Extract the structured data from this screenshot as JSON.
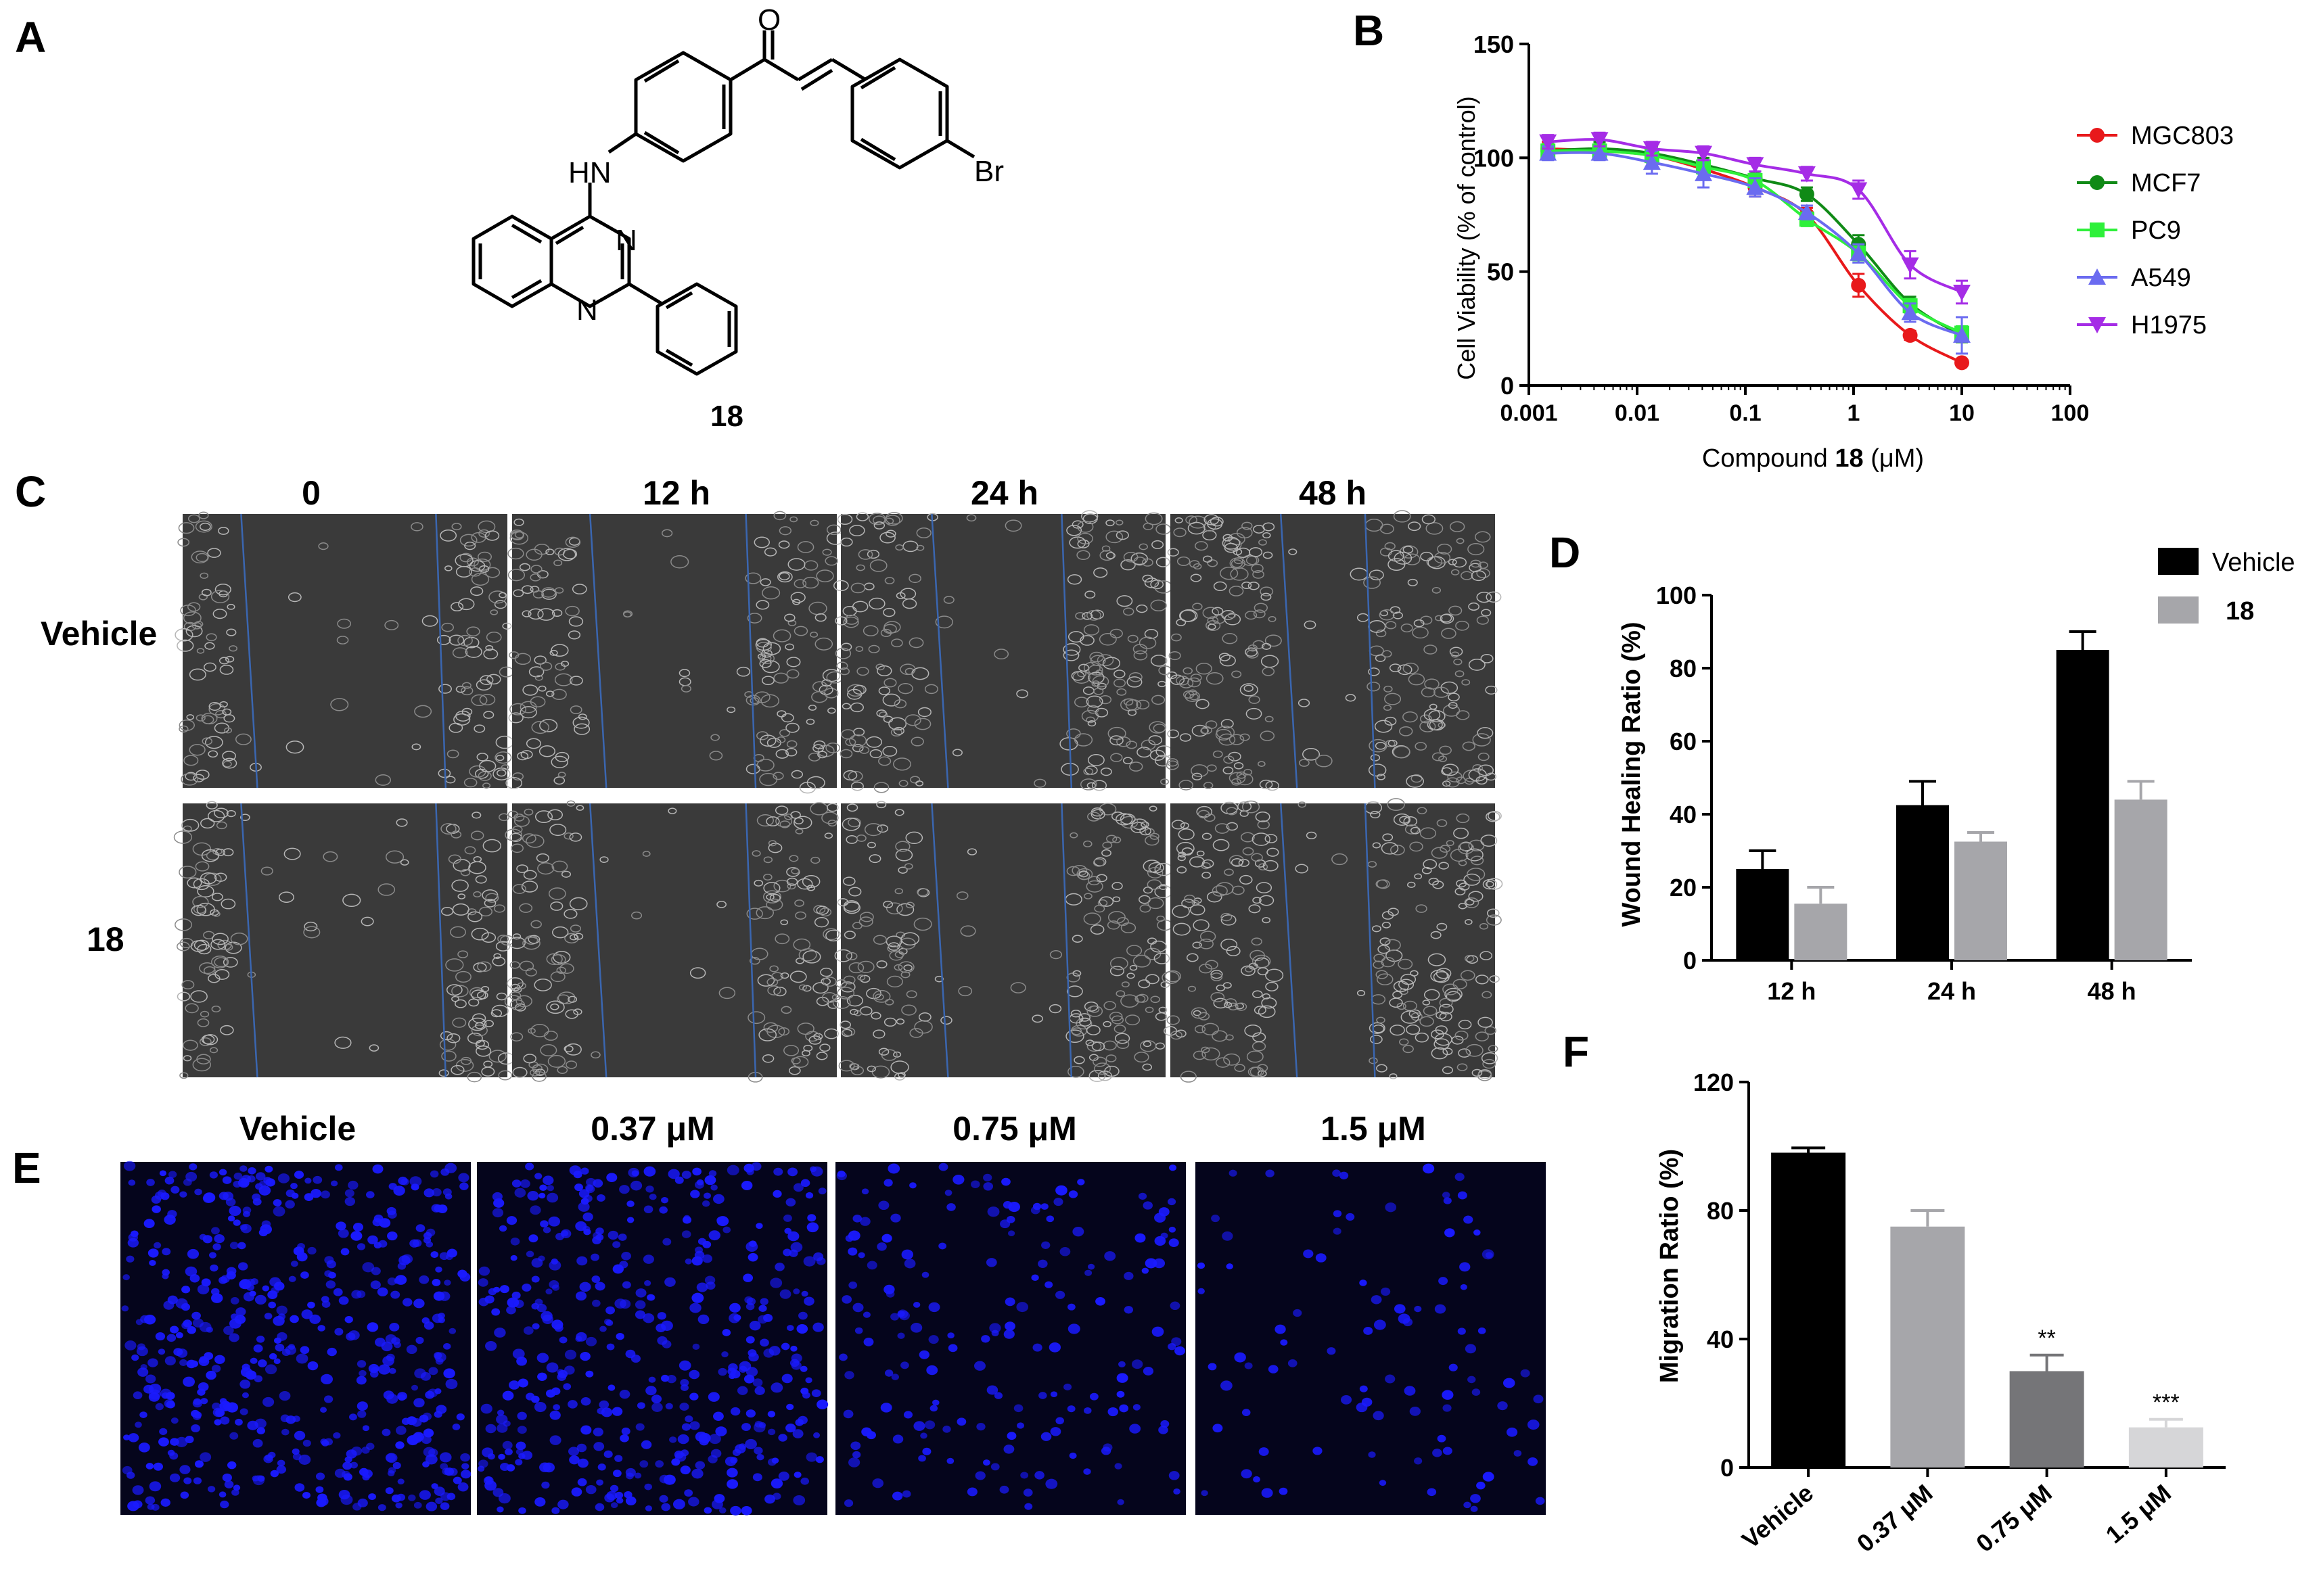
{
  "panels": {
    "A": {
      "label": "A",
      "compound": "18",
      "atoms": {
        "O": "O",
        "HN": "HN",
        "N1": "N",
        "N2": "N",
        "Br": "Br"
      }
    },
    "B": {
      "label": "B",
      "xlabel_prefix": "Compound ",
      "xlabel_bold": "18",
      "xlabel_unit": " (μM)",
      "ylabel": "Cell Viability (% of control)"
    },
    "C": {
      "label": "C",
      "columns": [
        "0",
        "12 h",
        "24 h",
        "48 h"
      ],
      "rows": [
        "Vehicle",
        "18"
      ],
      "micrograph_color": "#3a3a3a",
      "line_color": "#3a66b0"
    },
    "D": {
      "label": "D",
      "ylabel": "Wound Healing Ratio (%)"
    },
    "E": {
      "label": "E",
      "columns": [
        "Vehicle",
        "0.37 μM",
        "0.75 μM",
        "1.5 μM"
      ],
      "background_color": "#05051c",
      "nuclei_color": "#1a1aff",
      "nuclei_density": [
        1.0,
        0.85,
        0.35,
        0.18
      ]
    },
    "F": {
      "label": "F",
      "ylabel": "Migration Ratio (%)"
    }
  },
  "chart_data": [
    {
      "id": "B",
      "type": "line",
      "xscale": "log",
      "xlim": [
        0.001,
        100
      ],
      "ylim": [
        0,
        150
      ],
      "xticks": [
        "0.001",
        "0.01",
        "0.1",
        "1",
        "10",
        "100"
      ],
      "yticks": [
        "0",
        "50",
        "100",
        "150"
      ],
      "x": [
        0.0015,
        0.0045,
        0.0137,
        0.041,
        0.123,
        0.37,
        1.11,
        3.33,
        10
      ],
      "legend_position": "right",
      "series": [
        {
          "name": "MGC803",
          "color": "#e8191b",
          "marker": "circle",
          "values": [
            104,
            103,
            101,
            95,
            87,
            75,
            44,
            22,
            10
          ],
          "errors": [
            3,
            3,
            3,
            4,
            4,
            3,
            5,
            2,
            1
          ]
        },
        {
          "name": "MCF7",
          "color": "#108a16",
          "marker": "circle",
          "values": [
            103,
            104,
            102,
            97,
            91,
            84,
            62,
            36,
            22
          ],
          "errors": [
            3,
            3,
            3,
            3,
            3,
            3,
            4,
            3,
            3
          ]
        },
        {
          "name": "PC9",
          "color": "#2ef03a",
          "marker": "square",
          "values": [
            103,
            103,
            101,
            96,
            90,
            73,
            58,
            35,
            23
          ],
          "errors": [
            3,
            3,
            3,
            3,
            3,
            3,
            3,
            3,
            3
          ]
        },
        {
          "name": "A549",
          "color": "#6b6bf0",
          "marker": "triangle-up",
          "values": [
            102,
            102,
            98,
            93,
            87,
            76,
            58,
            32,
            22
          ],
          "errors": [
            3,
            3,
            5,
            6,
            4,
            3,
            4,
            4,
            8
          ]
        },
        {
          "name": "H1975",
          "color": "#a52ce6",
          "marker": "triangle-down",
          "values": [
            107,
            108,
            104,
            102,
            97,
            93,
            86,
            53,
            41
          ],
          "errors": [
            3,
            3,
            3,
            3,
            3,
            3,
            4,
            6,
            5
          ]
        }
      ]
    },
    {
      "id": "D",
      "type": "bar",
      "categories": [
        "12 h",
        "24 h",
        "48 h"
      ],
      "ylim": [
        0,
        100
      ],
      "yticks": [
        "0",
        "20",
        "40",
        "60",
        "80",
        "100"
      ],
      "legend_position": "top-right",
      "series": [
        {
          "name": "Vehicle",
          "color": "#000000",
          "values": [
            25,
            42.5,
            85
          ],
          "errors": [
            5,
            6.5,
            5
          ]
        },
        {
          "name": "18",
          "color": "#a6a6aa",
          "values": [
            15.5,
            32.5,
            44
          ],
          "errors": [
            4.5,
            2.5,
            5
          ]
        }
      ]
    },
    {
      "id": "F",
      "type": "bar",
      "categories": [
        "Vehicle",
        "0.37 μM",
        "0.75 μM",
        "1.5 μM"
      ],
      "ylim": [
        0,
        120
      ],
      "yticks": [
        "0",
        "40",
        "80",
        "120"
      ],
      "values": [
        98,
        75,
        30,
        12.5
      ],
      "errors": [
        1.5,
        5,
        5,
        2.5
      ],
      "colors": [
        "#000000",
        "#a6a6aa",
        "#757578",
        "#d6d6d8"
      ],
      "annotations": [
        "",
        "",
        "**",
        "***"
      ]
    }
  ]
}
